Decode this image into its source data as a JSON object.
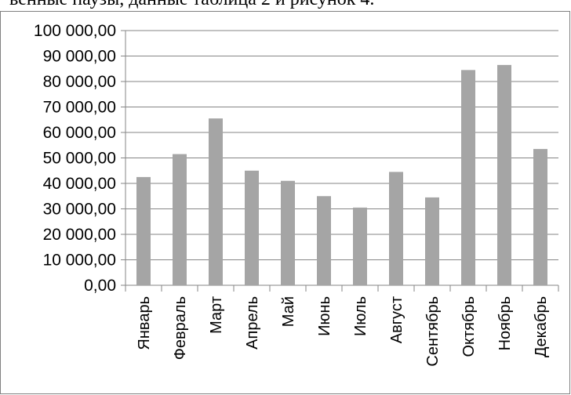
{
  "top_text": "венные паузы, данные таблица 2 и рисунок 4.",
  "chart_data": {
    "type": "bar",
    "categories": [
      "Январь",
      "Февраль",
      "Март",
      "Апрель",
      "Май",
      "Июнь",
      "Июль",
      "Август",
      "Сентябрь",
      "Октябрь",
      "Ноябрь",
      "Декабрь"
    ],
    "values": [
      42500,
      51500,
      65500,
      45000,
      41000,
      35000,
      30500,
      44500,
      34500,
      84500,
      86500,
      53500
    ],
    "ylim": [
      0,
      100000
    ],
    "y_ticks": [
      "0,00",
      "10 000,00",
      "20 000,00",
      "30 000,00",
      "40 000,00",
      "50 000,00",
      "60 000,00",
      "70 000,00",
      "80 000,00",
      "90 000,00",
      "100 000,00"
    ],
    "grid": true,
    "bar_color": "#a5a5a5",
    "grid_color": "#868686"
  }
}
